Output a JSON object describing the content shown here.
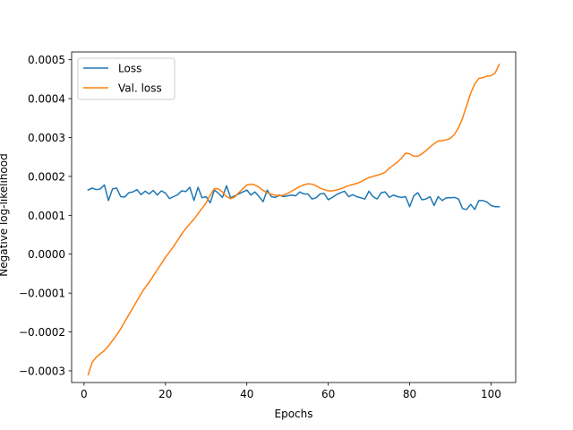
{
  "chart_data": {
    "type": "line",
    "title": "",
    "xlabel": "Epochs",
    "ylabel": "Negative log-likelihood",
    "xlim": [
      -3.05,
      106.05
    ],
    "ylim": [
      -0.00033,
      0.00052
    ],
    "xticks": [
      0,
      20,
      40,
      60,
      80,
      100
    ],
    "xtick_labels": [
      "0",
      "20",
      "40",
      "60",
      "80",
      "100"
    ],
    "yticks": [
      -0.0003,
      -0.0002,
      -0.0001,
      0.0,
      0.0001,
      0.0002,
      0.0003,
      0.0004,
      0.0005
    ],
    "ytick_labels": [
      "−0.0003",
      "−0.0002",
      "−0.0001",
      "0.0000",
      "0.0001",
      "0.0002",
      "0.0003",
      "0.0004",
      "0.0005"
    ],
    "grid": false,
    "legend_position": "top-left",
    "x": [
      1,
      2,
      3,
      4,
      5,
      6,
      7,
      8,
      9,
      10,
      11,
      12,
      13,
      14,
      15,
      16,
      17,
      18,
      19,
      20,
      21,
      22,
      23,
      24,
      25,
      26,
      27,
      28,
      29,
      30,
      31,
      32,
      33,
      34,
      35,
      36,
      37,
      38,
      39,
      40,
      41,
      42,
      43,
      44,
      45,
      46,
      47,
      48,
      49,
      50,
      51,
      52,
      53,
      54,
      55,
      56,
      57,
      58,
      59,
      60,
      61,
      62,
      63,
      64,
      65,
      66,
      67,
      68,
      69,
      70,
      71,
      72,
      73,
      74,
      75,
      76,
      77,
      78,
      79,
      80,
      81,
      82,
      83,
      84,
      85,
      86,
      87,
      88,
      89,
      90,
      91,
      92,
      93,
      94,
      95,
      96,
      97,
      98,
      99,
      100,
      101,
      102
    ],
    "series": [
      {
        "name": "Loss",
        "color": "#1f77b4",
        "values": [
          0.000165,
          0.00017,
          0.000166,
          0.000168,
          0.000178,
          0.000138,
          0.000168,
          0.00017,
          0.000148,
          0.000147,
          0.000158,
          0.00016,
          0.000166,
          0.000153,
          0.000162,
          0.000155,
          0.000164,
          0.000152,
          0.000163,
          0.000157,
          0.000143,
          0.000148,
          0.000153,
          0.000163,
          0.000161,
          0.000172,
          0.000138,
          0.000172,
          0.000145,
          0.000148,
          0.000132,
          0.000165,
          0.000157,
          0.000146,
          0.000176,
          0.000145,
          0.00015,
          0.000155,
          0.00016,
          0.000165,
          0.000152,
          0.00016,
          0.000148,
          0.000135,
          0.000165,
          0.000148,
          0.000146,
          0.000152,
          0.000148,
          0.00015,
          0.000152,
          0.00015,
          0.00016,
          0.000155,
          0.000155,
          0.000142,
          0.000145,
          0.000155,
          0.000156,
          0.00014,
          0.000146,
          0.000153,
          0.000158,
          0.000162,
          0.000148,
          0.000153,
          0.000148,
          0.000145,
          0.000142,
          0.000162,
          0.000148,
          0.000142,
          0.000158,
          0.00016,
          0.000146,
          0.000152,
          0.000148,
          0.000146,
          0.000148,
          0.000122,
          0.00015,
          0.000158,
          0.00014,
          0.000142,
          0.000148,
          0.000125,
          0.000148,
          0.000138,
          0.000145,
          0.000145,
          0.000146,
          0.000142,
          0.000117,
          0.000115,
          0.000128,
          0.000115,
          0.000138,
          0.000138,
          0.000134,
          0.000125,
          0.000122,
          0.000122
        ]
      },
      {
        "name": "Val. loss",
        "color": "#ff7f0e",
        "values": [
          -0.00031,
          -0.000278,
          -0.000265,
          -0.000256,
          -0.000248,
          -0.000236,
          -0.000222,
          -0.000208,
          -0.000192,
          -0.000174,
          -0.000156,
          -0.000138,
          -0.00012,
          -0.000102,
          -8.6e-05,
          -7.2e-05,
          -5.6e-05,
          -4e-05,
          -2.4e-05,
          -8e-06,
          6e-06,
          2e-05,
          3.6e-05,
          5.2e-05,
          6.6e-05,
          7.8e-05,
          9e-05,
          0.000104,
          0.000118,
          0.000132,
          0.000152,
          0.000168,
          0.000168,
          0.00016,
          0.000148,
          0.000143,
          0.000147,
          0.000158,
          0.000168,
          0.000178,
          0.00018,
          0.000178,
          0.000172,
          0.000164,
          0.000158,
          0.000154,
          0.000152,
          0.00015,
          0.000152,
          0.000156,
          0.000162,
          0.000168,
          0.000174,
          0.000178,
          0.000181,
          0.00018,
          0.000176,
          0.00017,
          0.000166,
          0.000163,
          0.000163,
          0.000165,
          0.000168,
          0.000172,
          0.000176,
          0.000179,
          0.000182,
          0.000186,
          0.000192,
          0.000197,
          0.0002,
          0.000203,
          0.000206,
          0.000211,
          0.000221,
          0.000229,
          0.000237,
          0.000247,
          0.00026,
          0.000258,
          0.000252,
          0.000252,
          0.000258,
          0.000266,
          0.000276,
          0.000284,
          0.000291,
          0.000292,
          0.000294,
          0.000298,
          0.000308,
          0.000325,
          0.00035,
          0.000382,
          0.000414,
          0.000438,
          0.000452,
          0.000454,
          0.000458,
          0.000459,
          0.000466,
          0.000488
        ]
      }
    ]
  }
}
